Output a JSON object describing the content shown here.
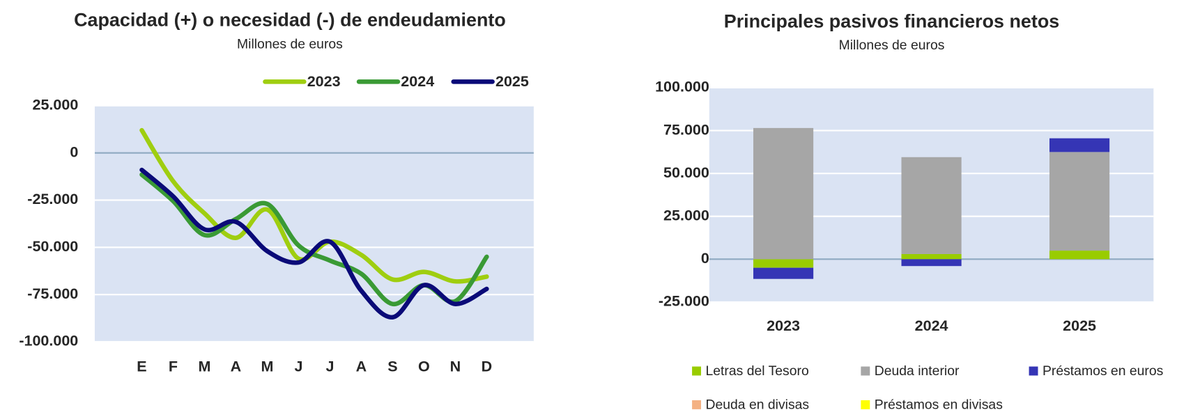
{
  "chart_data": [
    {
      "type": "line",
      "title": "Capacidad (+) o necesidad (-) de endeudamiento",
      "subtitle": "Millones de euros",
      "categories": [
        "E",
        "F",
        "M",
        "A",
        "M",
        "J",
        "J",
        "A",
        "S",
        "O",
        "N",
        "D"
      ],
      "series": [
        {
          "name": "2023",
          "color": "#9fce10",
          "values": [
            12000,
            -15000,
            -32000,
            -45000,
            -30000,
            -56000,
            -47000,
            -54000,
            -67000,
            -63000,
            -68000,
            -65500
          ]
        },
        {
          "name": "2024",
          "color": "#3a9a35",
          "values": [
            -11500,
            -25500,
            -43500,
            -35000,
            -27000,
            -49000,
            -57000,
            -64000,
            -80000,
            -70000,
            -78500,
            -55000
          ]
        },
        {
          "name": "2025",
          "color": "#0a0a78",
          "values": [
            -9000,
            -23000,
            -40500,
            -36500,
            -52000,
            -58000,
            -47000,
            -73000,
            -87000,
            -70000,
            -80000,
            -72000
          ]
        }
      ],
      "ylim": [
        -100000,
        25000
      ],
      "yticks": [
        {
          "value": -100000,
          "label": "-100.000"
        },
        {
          "value": -75000,
          "label": "-75.000"
        },
        {
          "value": -50000,
          "label": "-50.000"
        },
        {
          "value": -25000,
          "label": "-25.000"
        },
        0,
        {
          "value": 25000,
          "label": "25.000"
        }
      ],
      "grid": true,
      "legend": "top-right"
    },
    {
      "type": "bar",
      "title": "Principales pasivos financieros netos",
      "subtitle": "Millones de euros",
      "categories": [
        "2023",
        "2024",
        "2025"
      ],
      "stacked": true,
      "series": [
        {
          "name": "Letras del  Tesoro",
          "color": "#99cc00",
          "values": [
            -5000,
            3000,
            5000
          ]
        },
        {
          "name": "Deuda interior",
          "color": "#a6a6a6",
          "values": [
            76500,
            56500,
            57500
          ]
        },
        {
          "name": "Préstamos en euros",
          "color": "#3535b5",
          "values": [
            -6500,
            -4000,
            8000
          ]
        },
        {
          "name": "Deuda en divisas",
          "color": "#f4b183",
          "values": [
            0,
            0,
            0
          ]
        },
        {
          "name": "Préstamos en divisas",
          "color": "#ffff00",
          "values": [
            0,
            0,
            0
          ]
        }
      ],
      "ylim": [
        -25000,
        100000
      ],
      "yticks": [
        {
          "value": -25000,
          "label": "-25.000"
        },
        0,
        {
          "value": 25000,
          "label": "25.000"
        },
        {
          "value": 50000,
          "label": "50.000"
        },
        {
          "value": 75000,
          "label": "75.000"
        },
        {
          "value": 100000,
          "label": "100.000"
        }
      ],
      "grid": true,
      "legend": "bottom"
    }
  ]
}
